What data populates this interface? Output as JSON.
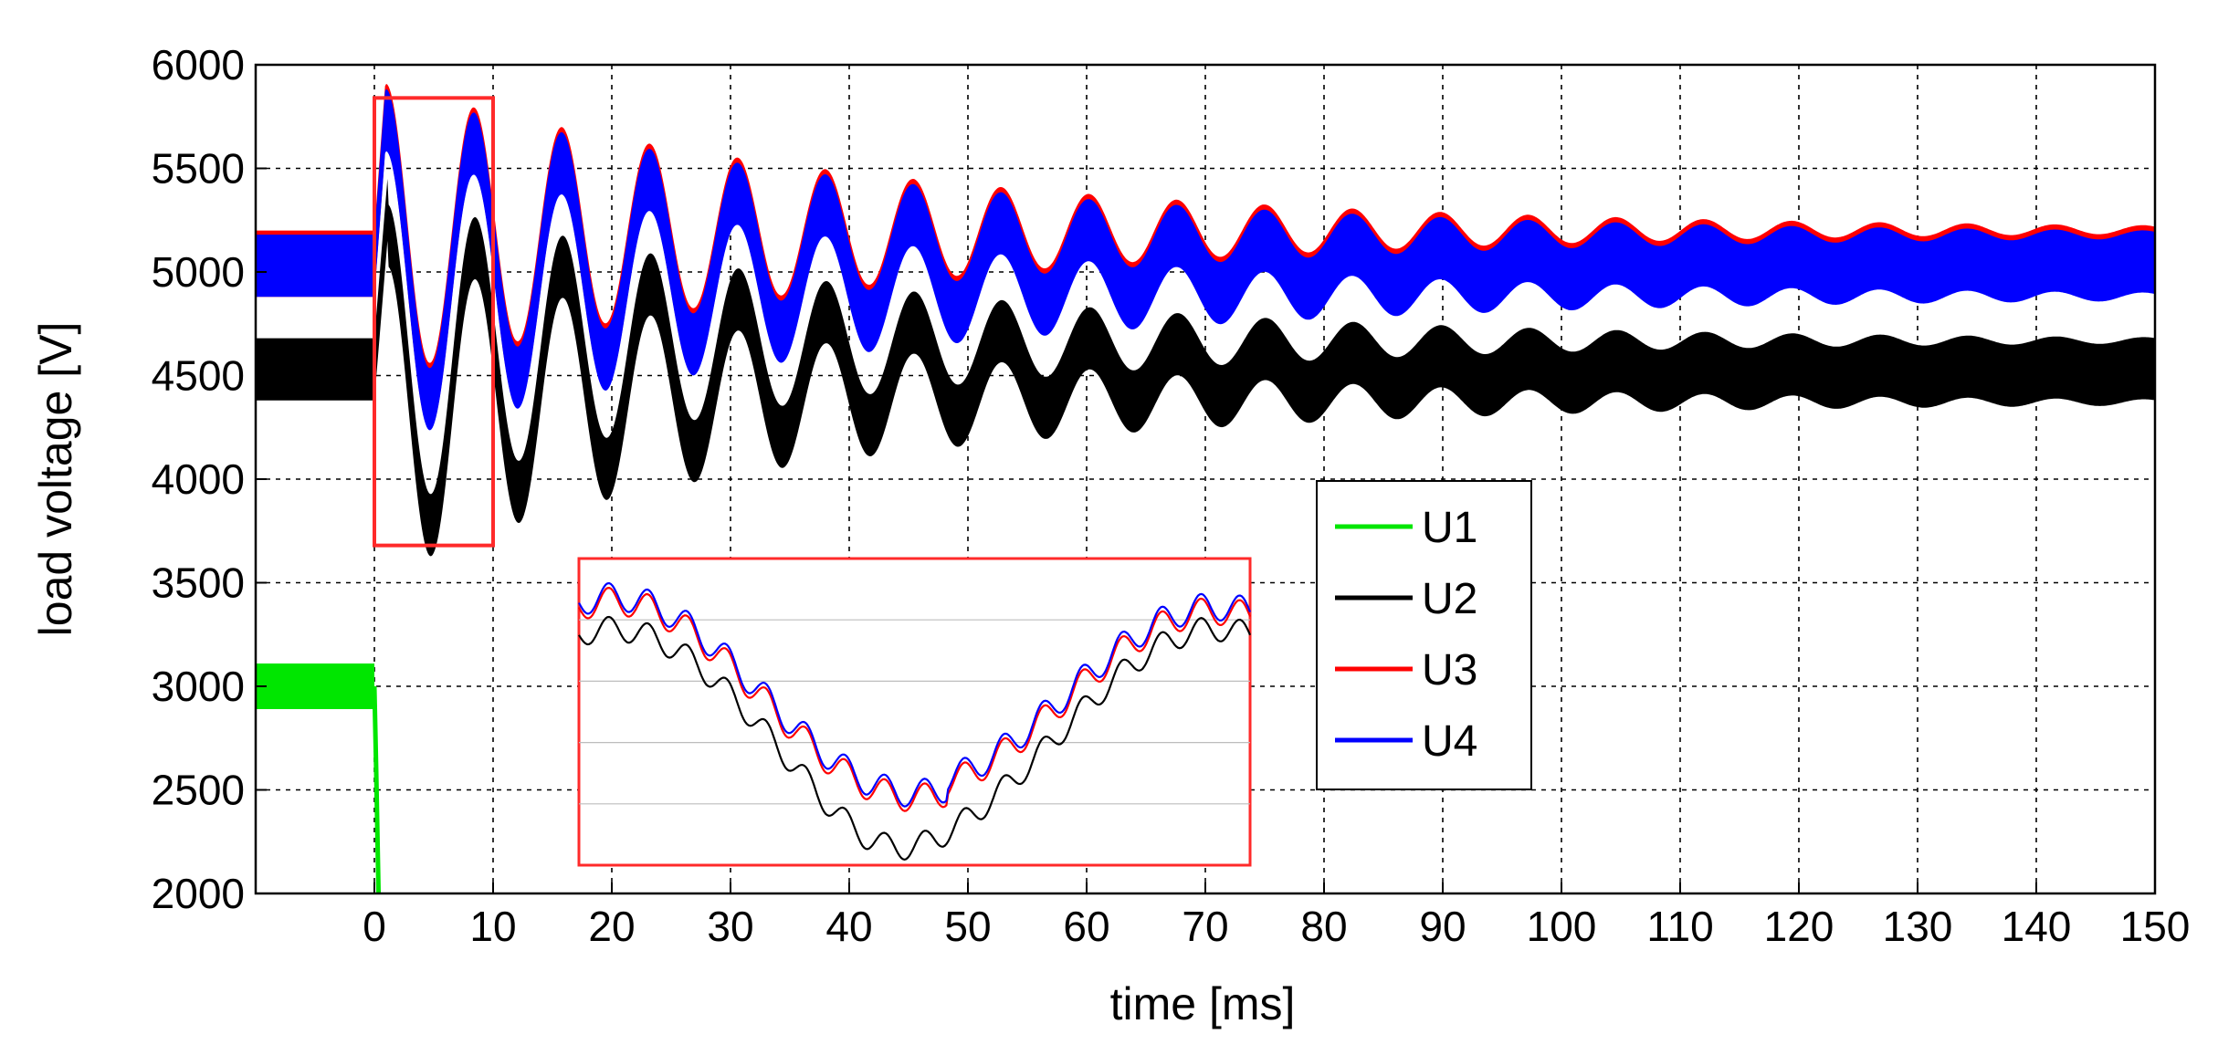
{
  "chart_data": {
    "type": "line",
    "title": "",
    "xlabel": "time [ms]",
    "ylabel": "load voltage [V]",
    "xlim": [
      -10,
      150
    ],
    "ylim": [
      2000,
      6000
    ],
    "xticks": [
      0,
      10,
      20,
      30,
      40,
      50,
      60,
      70,
      80,
      90,
      100,
      110,
      120,
      130,
      140,
      150
    ],
    "yticks": [
      2000,
      2500,
      3000,
      3500,
      4000,
      4500,
      5000,
      5500,
      6000
    ],
    "grid": true,
    "legend_position": "center-right",
    "series": [
      {
        "name": "U1",
        "color": "#00e600",
        "description_points": [
          [
            -10,
            3000
          ],
          [
            0,
            3000
          ],
          [
            0.2,
            2600
          ],
          [
            0.5,
            2000
          ]
        ],
        "ripple_band": 110
      },
      {
        "name": "U2",
        "color": "#000000",
        "pre_event_level": 4530,
        "settled_level": 4520,
        "first_peak": [
          0.8,
          5300
        ],
        "first_trough": [
          5.3,
          3720
        ],
        "oscillation_period_ms": 7.4,
        "ripple_band": 150
      },
      {
        "name": "U3",
        "color": "#ff0000",
        "pre_event_level": 5040,
        "settled_level": 5040,
        "first_peak": [
          1.0,
          5820
        ],
        "first_trough": [
          4.0,
          4300
        ],
        "oscillation_period_ms": 7.4,
        "ripple_band": 150
      },
      {
        "name": "U4",
        "color": "#0000ff",
        "pre_event_level": 5030,
        "settled_level": 5030,
        "first_peak": [
          1.0,
          5800
        ],
        "first_trough": [
          4.0,
          4350
        ],
        "oscillation_period_ms": 7.4,
        "ripple_band": 150
      }
    ],
    "annotations": [
      {
        "type": "zoom-rectangle",
        "color": "#ff0000",
        "x_range": [
          0,
          10
        ],
        "y_range": [
          3680,
          5840
        ]
      },
      {
        "type": "inset",
        "shows": "zoom of 0-10 ms window",
        "color": "#ff0000"
      }
    ]
  }
}
